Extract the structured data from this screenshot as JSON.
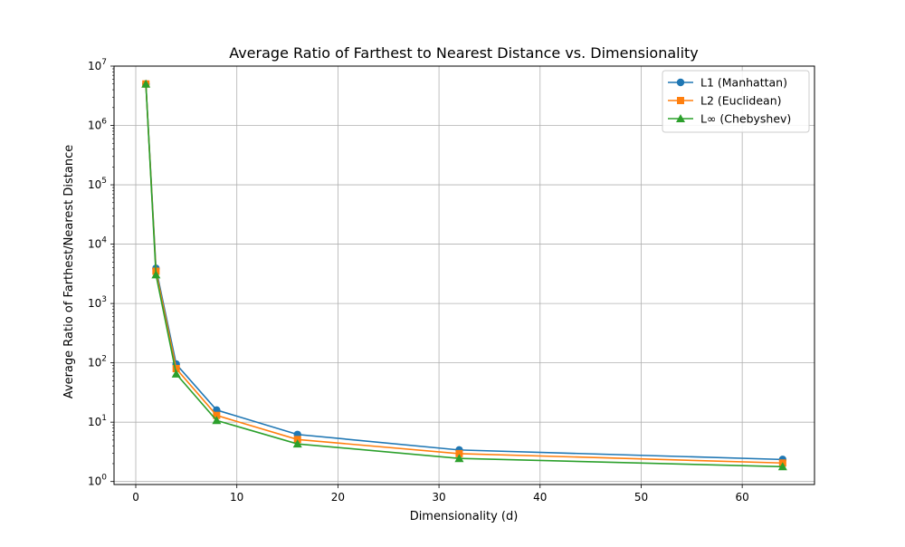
{
  "chart_data": {
    "type": "line",
    "title": "Average Ratio of Farthest to Nearest Distance vs. Dimensionality",
    "xlabel": "Dimensionality (d)",
    "ylabel": "Average Ratio of Farthest/Nearest Distance",
    "xlim": [
      -2.15,
      67.15
    ],
    "ylim_log10": [
      -0.0505,
      7.0
    ],
    "yscale": "log",
    "grid": true,
    "legend_position": "top-right",
    "x": [
      1,
      2,
      4,
      8,
      16,
      32,
      64
    ],
    "x_ticks": [
      0,
      10,
      20,
      30,
      40,
      50,
      60
    ],
    "y_ticks": [
      {
        "base": "10",
        "exp": "0",
        "value": 1
      },
      {
        "base": "10",
        "exp": "1",
        "value": 10
      },
      {
        "base": "10",
        "exp": "2",
        "value": 100
      },
      {
        "base": "10",
        "exp": "3",
        "value": 1000
      },
      {
        "base": "10",
        "exp": "4",
        "value": 10000
      },
      {
        "base": "10",
        "exp": "5",
        "value": 100000
      },
      {
        "base": "10",
        "exp": "6",
        "value": 1000000
      },
      {
        "base": "10",
        "exp": "7",
        "value": 10000000
      }
    ],
    "series": [
      {
        "name": "L1 (Manhattan)",
        "color": "#1f77b4",
        "marker": "circle",
        "values": [
          5000000,
          3900,
          95,
          16,
          6.2,
          3.4,
          2.35
        ]
      },
      {
        "name": "L2 (Euclidean)",
        "color": "#ff7f0e",
        "marker": "square",
        "values": [
          5000000,
          3500,
          80,
          13,
          5.1,
          2.95,
          2.05
        ]
      },
      {
        "name": "L∞ (Chebyshev)",
        "color": "#2ca02c",
        "marker": "triangle",
        "values": [
          5000000,
          3050,
          65,
          10.7,
          4.3,
          2.45,
          1.78
        ]
      }
    ]
  }
}
